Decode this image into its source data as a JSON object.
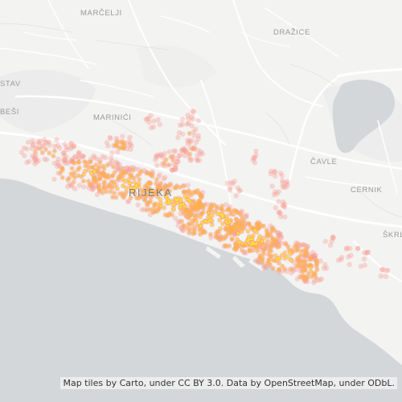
{
  "map": {
    "places": [
      {
        "id": "marcelji",
        "label": "MARČELJI"
      },
      {
        "id": "drazice",
        "label": "DRAŽICE"
      },
      {
        "id": "stav",
        "label": "STAV"
      },
      {
        "id": "besi",
        "label": "BEŠI"
      },
      {
        "id": "marinici",
        "label": "MARINIĆI"
      },
      {
        "id": "cavle",
        "label": "ČAVLE"
      },
      {
        "id": "cernik",
        "label": "CERNIK"
      },
      {
        "id": "skrl",
        "label": "ŠKRL"
      },
      {
        "id": "rijeka",
        "label": "RIJEKA"
      }
    ],
    "colors": {
      "land": "#f3f3f2",
      "sea": "#d4d7d9",
      "roads": "#ffffff",
      "point_core": "#ffe03a",
      "point_mid": "#ffb347",
      "point_halo": "#f59b8f"
    },
    "attribution": "Map tiles by Carto, under CC BY 3.0. Data by OpenStreetMap, under ODbL."
  }
}
